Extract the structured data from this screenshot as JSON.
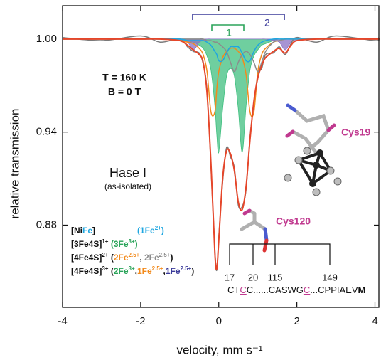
{
  "chart_data": {
    "type": "line",
    "x_label": "velocity, mm s⁻¹",
    "y_label": "relative transmission",
    "xlim": [
      -4,
      4.1
    ],
    "ylim": [
      0.827,
      1.0215
    ],
    "xticks": [
      -4,
      -2,
      0,
      2,
      4
    ],
    "yticks": [
      0.88,
      0.94,
      {
        "value": 1,
        "label": "1.00"
      }
    ],
    "x": [
      -4,
      -3,
      -2,
      -1.5,
      -1,
      -0.8,
      -0.65,
      -0.5,
      -0.4,
      -0.3,
      -0.2,
      -0.1,
      -0.05,
      0,
      0.1,
      0.2,
      0.3,
      0.4,
      0.5,
      0.6,
      0.7,
      0.8,
      0.9,
      1.0,
      1.1,
      1.2,
      1.4,
      1.55,
      1.7,
      1.85,
      2,
      2.5,
      3,
      4,
      4.1
    ],
    "series": [
      {
        "color": "#3fbf7f",
        "fill": true,
        "values": [
          1,
          1,
          1,
          1,
          0.999,
          0.998,
          0.998,
          0.996,
          0.994,
          0.989,
          0.98,
          0.957,
          0.938,
          0.927,
          0.955,
          0.976,
          0.981,
          0.976,
          0.955,
          0.927,
          0.957,
          0.98,
          0.989,
          0.993,
          0.996,
          0.997,
          0.999,
          1,
          1,
          1,
          1,
          1,
          1,
          1,
          1
        ]
      },
      {
        "color": "#8a70c4",
        "fill": true,
        "values": [
          1,
          1,
          1,
          1,
          0.999,
          0.998,
          0.993,
          0.998,
          0.999,
          1,
          1,
          1,
          1,
          1,
          1,
          1,
          1,
          1,
          1,
          1,
          1,
          1,
          1,
          1,
          1,
          1,
          0.999,
          0.998,
          0.993,
          0.998,
          0.999,
          1,
          1,
          1,
          1
        ]
      },
      {
        "color": "#7a7a7a",
        "fill": false,
        "values": [
          1.001,
          0.999,
          1.002,
          0.998,
          1.0,
          0.995,
          0.992,
          0.991,
          0.984,
          0.967,
          0.918,
          0.864,
          0.851,
          0.872,
          0.908,
          0.93,
          0.924,
          0.917,
          0.893,
          0.892,
          0.903,
          0.937,
          0.958,
          0.977,
          0.981,
          0.99,
          0.991,
          0.995,
          0.99,
          0.997,
          1.001,
          0.998,
          1.002,
          0.999,
          1.001
        ]
      },
      {
        "color": "#f28a1c",
        "fill": false,
        "values": [
          1,
          1,
          1,
          1,
          0.999,
          0.998,
          0.997,
          0.994,
          0.99,
          0.979,
          0.953,
          0.953,
          0.968,
          0.979,
          0.988,
          0.992,
          0.994,
          0.994,
          0.992,
          0.988,
          0.977,
          0.953,
          0.953,
          0.979,
          0.99,
          0.994,
          0.998,
          0.999,
          1,
          1,
          1,
          1,
          1,
          1,
          1
        ]
      },
      {
        "color": "#8c8c8c",
        "fill": false,
        "values": [
          1,
          1,
          1,
          1,
          1,
          1,
          1,
          1,
          1,
          0.999,
          0.999,
          0.998,
          0.998,
          0.997,
          0.995,
          0.992,
          0.985,
          0.979,
          0.985,
          0.99,
          0.992,
          0.99,
          0.985,
          0.979,
          0.985,
          0.992,
          0.998,
          0.999,
          1,
          1,
          1,
          1,
          1,
          1,
          1
        ]
      },
      {
        "color": "#1ea6e0",
        "fill": false,
        "values": [
          1,
          1,
          1,
          1,
          1,
          0.999,
          0.999,
          0.999,
          0.999,
          0.998,
          0.996,
          0.992,
          0.99,
          0.986,
          0.986,
          0.991,
          0.995,
          0.995,
          0.995,
          0.991,
          0.986,
          0.986,
          0.992,
          0.996,
          0.998,
          0.999,
          1,
          1,
          1,
          1,
          1,
          1,
          1,
          1,
          1
        ]
      },
      {
        "color": "#e6462a",
        "fill": false,
        "values": [
          1,
          1,
          1,
          1,
          0.999,
          0.996,
          0.993,
          0.99,
          0.985,
          0.965,
          0.92,
          0.862,
          0.852,
          0.87,
          0.91,
          0.928,
          0.926,
          0.915,
          0.895,
          0.89,
          0.905,
          0.935,
          0.96,
          0.975,
          0.983,
          0.988,
          0.992,
          0.994,
          0.991,
          0.996,
          0.999,
          1,
          1,
          1,
          1
        ]
      }
    ],
    "annotations": {
      "temperature": "T = 160 K",
      "field": "B = 0 T",
      "sample": "Hase I",
      "state": "(as-isolated)",
      "bracket_1": "1",
      "bracket_2": "2",
      "cys_a": "Cys19",
      "cys_b": "Cys120"
    },
    "legend": [
      [
        {
          "text": "[Ni"
        },
        {
          "text": "Fe",
          "color": "#1ea6e0"
        },
        {
          "text": "]"
        },
        {
          "text": "(1Fe",
          "color": "#1ea6e0"
        },
        {
          "text": "2+",
          "color": "#1ea6e0",
          "sup": true
        },
        {
          "text": ")",
          "color": "#1ea6e0"
        }
      ],
      [
        {
          "text": "[3Fe4S]"
        },
        {
          "text": "1+",
          "sup": true
        },
        {
          "text": " (3Fe",
          "color": "#2ba45a"
        },
        {
          "text": "3+",
          "color": "#2ba45a",
          "sup": true
        },
        {
          "text": ")",
          "color": "#2ba45a"
        }
      ],
      [
        {
          "text": "[4Fe4S]"
        },
        {
          "text": "2+",
          "sup": true
        },
        {
          "text": " ("
        },
        {
          "text": "2Fe",
          "color": "#f28a1c"
        },
        {
          "text": "2.5+",
          "color": "#f28a1c",
          "sup": true
        },
        {
          "text": ", "
        },
        {
          "text": "2Fe",
          "color": "#8c8c8c"
        },
        {
          "text": "2.5+",
          "color": "#8c8c8c",
          "sup": true
        },
        {
          "text": ")"
        }
      ],
      [
        {
          "text": "[4Fe4S]"
        },
        {
          "text": "3+",
          "sup": true
        },
        {
          "text": " ("
        },
        {
          "text": "2Fe",
          "color": "#2ba45a"
        },
        {
          "text": "3+",
          "color": "#2ba45a",
          "sup": true
        },
        {
          "text": ","
        },
        {
          "text": "1Fe",
          "color": "#f28a1c"
        },
        {
          "text": "2.5+",
          "color": "#f28a1c",
          "sup": true
        },
        {
          "text": ","
        },
        {
          "text": "1Fe",
          "color": "#3b3b9a"
        },
        {
          "text": "2.5+",
          "color": "#3b3b9a",
          "sup": true
        },
        {
          "text": ")"
        }
      ]
    ],
    "sequence": {
      "positions": [
        "17",
        "20",
        "115",
        "149"
      ],
      "parts": [
        {
          "text": "CT"
        },
        {
          "text": "C",
          "color": "#c0398f",
          "underline": true
        },
        {
          "text": "C......CASWG"
        },
        {
          "text": "C",
          "color": "#c0398f",
          "underline": true
        },
        {
          "text": "...CPPIAEV"
        },
        {
          "text": "M",
          "bold": true
        }
      ]
    }
  }
}
